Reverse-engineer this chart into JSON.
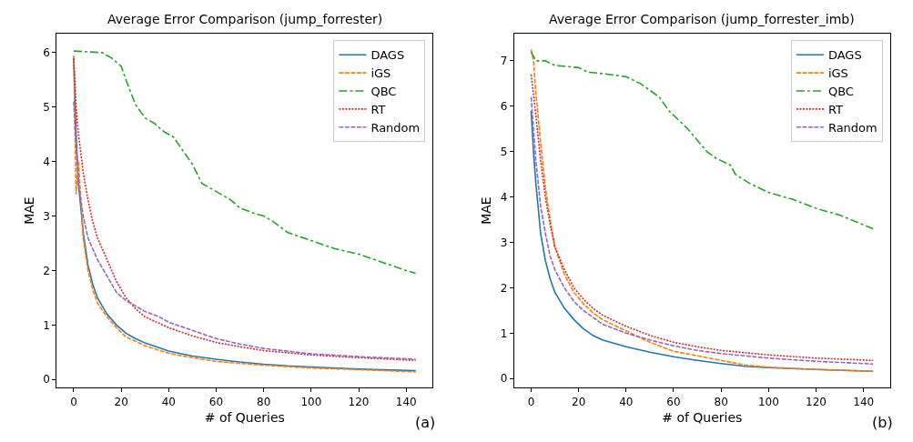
{
  "chart_data": [
    {
      "type": "line",
      "title": "Average Error Comparison (jump_forrester)",
      "xlabel": "# of Queries",
      "ylabel": "MAE",
      "xlim": [
        -7.2,
        151.2
      ],
      "ylim": [
        -0.15,
        6.35
      ],
      "xticks": [
        0,
        20,
        40,
        60,
        80,
        100,
        120,
        140
      ],
      "yticks": [
        0,
        1,
        2,
        3,
        4,
        5,
        6
      ],
      "legend": "top right",
      "annotations": [
        "(a)"
      ],
      "series": [
        {
          "name": "DAGS",
          "color": "#1f77b4",
          "line_style": "solid",
          "x": [
            0,
            1,
            2,
            4,
            6,
            8,
            10,
            14,
            18,
            22,
            26,
            30,
            40,
            50,
            60,
            70,
            80,
            90,
            100,
            120,
            144
          ],
          "values": [
            5.9,
            4.5,
            3.6,
            2.7,
            2.1,
            1.75,
            1.5,
            1.2,
            1.0,
            0.85,
            0.75,
            0.67,
            0.52,
            0.43,
            0.37,
            0.32,
            0.28,
            0.25,
            0.23,
            0.19,
            0.16
          ]
        },
        {
          "name": "iGS",
          "color": "#ff7f0e",
          "line_style": "dashed",
          "x": [
            0,
            1,
            2,
            3,
            4,
            6,
            8,
            10,
            14,
            18,
            22,
            30,
            40,
            50,
            60,
            80,
            100,
            120,
            144
          ],
          "values": [
            5.95,
            3.4,
            4.0,
            3.3,
            2.6,
            2.0,
            1.65,
            1.4,
            1.15,
            0.95,
            0.78,
            0.62,
            0.48,
            0.4,
            0.33,
            0.26,
            0.21,
            0.18,
            0.14
          ]
        },
        {
          "name": "QBC",
          "color": "#2ca02c",
          "line_style": "dashdot",
          "x": [
            0,
            12,
            16,
            20,
            22,
            26,
            30,
            34,
            38,
            42,
            46,
            50,
            54,
            58,
            62,
            66,
            70,
            76,
            80,
            84,
            90,
            100,
            110,
            120,
            130,
            140,
            144
          ],
          "values": [
            6.03,
            6.0,
            5.9,
            5.75,
            5.5,
            5.05,
            4.8,
            4.7,
            4.55,
            4.45,
            4.2,
            3.95,
            3.6,
            3.5,
            3.4,
            3.3,
            3.15,
            3.05,
            3.0,
            2.9,
            2.7,
            2.55,
            2.4,
            2.3,
            2.15,
            2.0,
            1.95
          ]
        },
        {
          "name": "RT",
          "color": "#d62728",
          "line_style": "dotted",
          "x": [
            0,
            1,
            2,
            4,
            6,
            8,
            10,
            14,
            18,
            22,
            26,
            30,
            40,
            50,
            60,
            70,
            80,
            100,
            120,
            144
          ],
          "values": [
            5.9,
            5.0,
            4.5,
            3.8,
            3.3,
            2.9,
            2.6,
            2.2,
            1.8,
            1.5,
            1.3,
            1.15,
            0.95,
            0.8,
            0.68,
            0.6,
            0.53,
            0.45,
            0.4,
            0.35
          ]
        },
        {
          "name": "Random",
          "color": "#9467bd",
          "line_style": "dashed",
          "x": [
            0,
            1,
            2,
            4,
            6,
            8,
            10,
            14,
            18,
            22,
            26,
            30,
            36,
            40,
            50,
            60,
            70,
            80,
            100,
            120,
            144
          ],
          "values": [
            5.1,
            4.3,
            3.6,
            3.0,
            2.6,
            2.4,
            2.2,
            1.9,
            1.6,
            1.45,
            1.35,
            1.25,
            1.15,
            1.05,
            0.9,
            0.75,
            0.65,
            0.57,
            0.47,
            0.42,
            0.37
          ]
        }
      ]
    },
    {
      "type": "line",
      "title": "Average Error Comparison (jump_forrester_imb)",
      "xlabel": "# of Queries",
      "ylabel": "MAE",
      "xlim": [
        -7.2,
        151.2
      ],
      "ylim": [
        -0.2,
        7.6
      ],
      "xticks": [
        0,
        20,
        40,
        60,
        80,
        100,
        120,
        140
      ],
      "yticks": [
        0,
        1,
        2,
        3,
        4,
        5,
        6,
        7
      ],
      "legend": "top right",
      "annotations": [
        "(b)"
      ],
      "series": [
        {
          "name": "DAGS",
          "color": "#1f77b4",
          "line_style": "solid",
          "x": [
            0,
            1,
            2,
            4,
            6,
            8,
            10,
            14,
            18,
            22,
            26,
            30,
            40,
            50,
            60,
            70,
            80,
            90,
            100,
            120,
            144
          ],
          "values": [
            5.9,
            5.0,
            4.3,
            3.2,
            2.6,
            2.2,
            1.9,
            1.55,
            1.3,
            1.1,
            0.95,
            0.85,
            0.7,
            0.58,
            0.48,
            0.4,
            0.33,
            0.27,
            0.24,
            0.2,
            0.16
          ]
        },
        {
          "name": "iGS",
          "color": "#ff7f0e",
          "line_style": "dashed",
          "x": [
            0,
            1,
            2,
            4,
            6,
            8,
            10,
            14,
            18,
            22,
            26,
            30,
            40,
            50,
            60,
            70,
            80,
            90,
            100,
            120,
            144
          ],
          "values": [
            7.25,
            7.0,
            6.3,
            5.2,
            4.2,
            3.5,
            2.9,
            2.3,
            1.9,
            1.65,
            1.45,
            1.3,
            1.05,
            0.8,
            0.6,
            0.5,
            0.4,
            0.3,
            0.25,
            0.2,
            0.16
          ]
        },
        {
          "name": "QBC",
          "color": "#2ca02c",
          "line_style": "dashdot",
          "x": [
            0,
            2,
            6,
            10,
            20,
            24,
            30,
            40,
            46,
            50,
            54,
            58,
            62,
            66,
            70,
            74,
            78,
            84,
            86,
            92,
            100,
            110,
            120,
            130,
            144
          ],
          "values": [
            7.2,
            7.0,
            7.0,
            6.9,
            6.85,
            6.75,
            6.72,
            6.65,
            6.5,
            6.35,
            6.2,
            5.9,
            5.7,
            5.5,
            5.25,
            5.0,
            4.85,
            4.7,
            4.5,
            4.3,
            4.1,
            3.95,
            3.75,
            3.6,
            3.3
          ]
        },
        {
          "name": "RT",
          "color": "#d62728",
          "line_style": "dotted",
          "x": [
            0,
            2,
            4,
            6,
            8,
            10,
            14,
            18,
            22,
            26,
            30,
            40,
            50,
            60,
            70,
            80,
            100,
            120,
            144
          ],
          "values": [
            6.7,
            5.8,
            4.8,
            4.0,
            3.4,
            2.9,
            2.4,
            2.0,
            1.75,
            1.55,
            1.4,
            1.15,
            0.95,
            0.8,
            0.7,
            0.62,
            0.52,
            0.45,
            0.4
          ]
        },
        {
          "name": "Random",
          "color": "#9467bd",
          "line_style": "dashed",
          "x": [
            0,
            2,
            4,
            6,
            8,
            10,
            14,
            18,
            22,
            26,
            30,
            40,
            50,
            60,
            70,
            80,
            100,
            120,
            144
          ],
          "values": [
            6.2,
            4.8,
            3.8,
            3.2,
            2.7,
            2.4,
            2.0,
            1.7,
            1.5,
            1.35,
            1.2,
            1.0,
            0.85,
            0.72,
            0.62,
            0.55,
            0.45,
            0.38,
            0.32
          ]
        }
      ]
    }
  ]
}
